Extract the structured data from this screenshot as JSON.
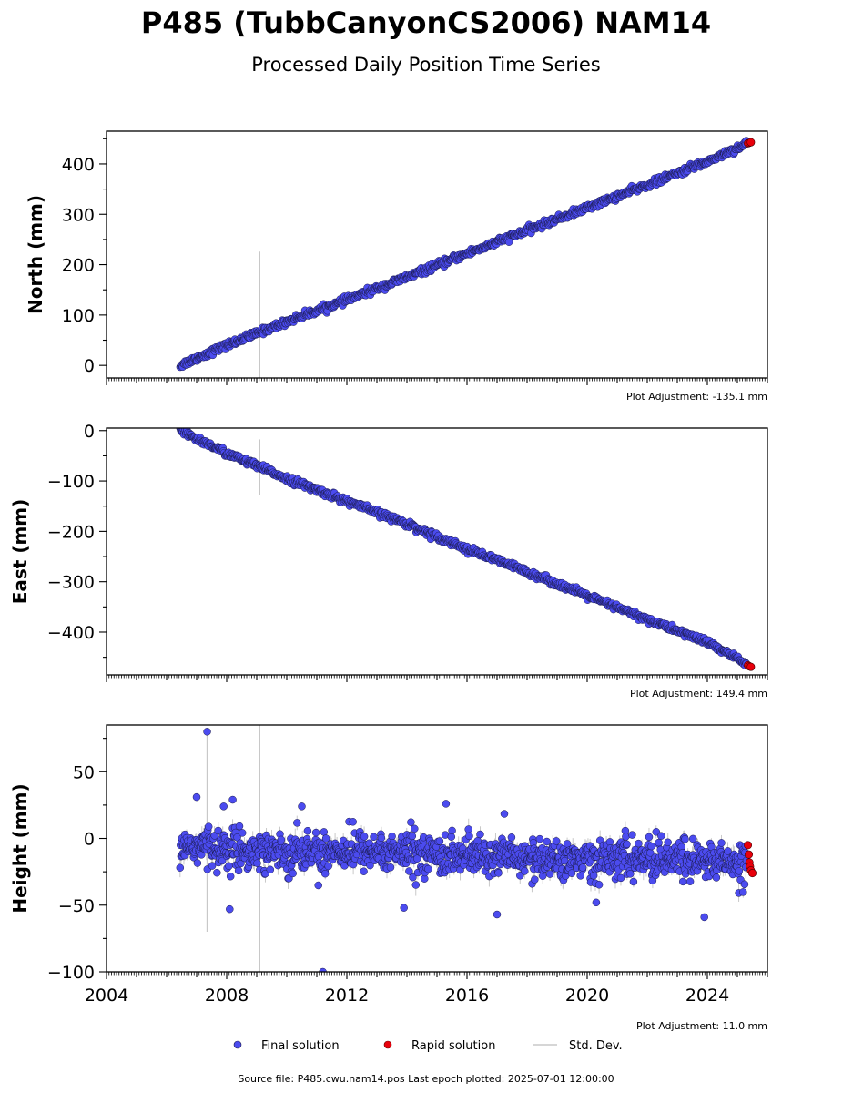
{
  "figure": {
    "title": "P485 (TubbCanyonCS2006) NAM14",
    "subtitle": "Processed Daily Position Time Series",
    "source_note": "Source file: P485.cwu.nam14.pos  Last epoch plotted: 2025-07-01 12:00:00"
  },
  "legend": {
    "final": "Final solution",
    "rapid": "Rapid solution",
    "std": "Std. Dev.",
    "final_color": "#4b4bef",
    "rapid_color": "#e8000b",
    "std_color": "#c8c8c8"
  },
  "chart_data": [
    {
      "type": "scatter",
      "ylabel": "North (mm)",
      "adjustment": "Plot Adjustment: -135.1 mm",
      "xlim": [
        2004,
        2026
      ],
      "ylim": [
        -25,
        465
      ],
      "yticks": [
        0,
        100,
        200,
        300,
        400
      ],
      "ytick_labels": [
        "0",
        "100",
        "200",
        "300",
        "400"
      ],
      "show_xtick_labels": false,
      "series": [
        {
          "name": "Final solution",
          "x": [
            2006.45,
            2008,
            2010,
            2012,
            2014,
            2016,
            2018,
            2020,
            2022,
            2024,
            2025.3
          ],
          "y": [
            0,
            40,
            87,
            130,
            175,
            222,
            268,
            313,
            358,
            405,
            440
          ]
        },
        {
          "name": "Rapid solution",
          "x": [
            2025.35,
            2025.4,
            2025.45
          ],
          "y": [
            441,
            442,
            443
          ]
        }
      ]
    },
    {
      "type": "scatter",
      "ylabel": "East (mm)",
      "adjustment": "Plot Adjustment: 149.4 mm",
      "xlim": [
        2004,
        2026
      ],
      "ylim": [
        -485,
        5
      ],
      "yticks": [
        0,
        -100,
        -200,
        -300,
        -400
      ],
      "ytick_labels": [
        "0",
        "−100",
        "−200",
        "−300",
        "−400"
      ],
      "show_xtick_labels": false,
      "series": [
        {
          "name": "Final solution",
          "x": [
            2006.45,
            2008,
            2010,
            2012,
            2014,
            2016,
            2018,
            2020,
            2022,
            2024,
            2025.3
          ],
          "y": [
            0,
            -45,
            -95,
            -140,
            -185,
            -235,
            -280,
            -328,
            -375,
            -420,
            -463
          ]
        },
        {
          "name": "Rapid solution",
          "x": [
            2025.35,
            2025.4,
            2025.45
          ],
          "y": [
            -466,
            -468,
            -469
          ]
        }
      ]
    },
    {
      "type": "scatter",
      "ylabel": "Height (mm)",
      "adjustment": "Plot Adjustment: 11.0 mm",
      "xlim": [
        2004,
        2026
      ],
      "ylim": [
        -100,
        85
      ],
      "yticks": [
        50,
        0,
        -50,
        -100
      ],
      "ytick_labels": [
        "50",
        "0",
        "−50",
        "−100"
      ],
      "show_xtick_labels": true,
      "xticks": [
        2004,
        2008,
        2012,
        2016,
        2020,
        2024
      ],
      "xtick_labels": [
        "2004",
        "2008",
        "2012",
        "2016",
        "2020",
        "2024"
      ],
      "series": [
        {
          "name": "Final solution",
          "x": [
            2006.45,
            2008,
            2010,
            2012,
            2014,
            2016,
            2018,
            2020,
            2022,
            2024,
            2025.3
          ],
          "y": [
            -5,
            -8,
            -10,
            -9,
            -10,
            -13,
            -15,
            -16,
            -15,
            -17,
            -18
          ],
          "outliers": [
            [
              2007.35,
              80
            ],
            [
              2007.9,
              24
            ],
            [
              2008.2,
              29
            ],
            [
              2007.0,
              31
            ],
            [
              2010.5,
              24
            ],
            [
              2011.2,
              -100
            ],
            [
              2015.3,
              26
            ],
            [
              2013.9,
              -52
            ],
            [
              2017.0,
              -57
            ],
            [
              2020.3,
              -48
            ],
            [
              2023.9,
              -59
            ],
            [
              2008.1,
              -53
            ]
          ]
        },
        {
          "name": "Rapid solution",
          "x": [
            2025.35,
            2025.38,
            2025.4,
            2025.42,
            2025.45,
            2025.5
          ],
          "y": [
            -5,
            -12,
            -18,
            -21,
            -24,
            -26
          ]
        }
      ]
    }
  ]
}
